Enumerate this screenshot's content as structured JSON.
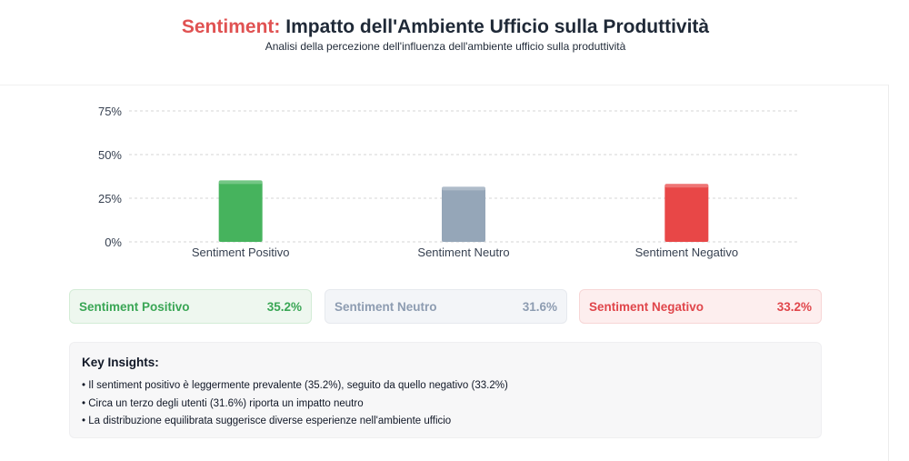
{
  "header": {
    "title_accent": "Sentiment:",
    "title_rest": "Impatto dell'Ambiente Ufficio sulla Produttività",
    "subtitle": "Analisi della percezione dell'influenza dell'ambiente ufficio sulla produttività"
  },
  "chart_data": {
    "type": "bar",
    "categories": [
      "Sentiment Positivo",
      "Sentiment Neutro",
      "Sentiment Negativo"
    ],
    "values": [
      35.2,
      31.6,
      33.2
    ],
    "colors": [
      "#46b35d",
      "#95a6b8",
      "#e84747"
    ],
    "yticks": [
      "0%",
      "25%",
      "50%",
      "75%"
    ],
    "ytick_values": [
      0,
      25,
      50,
      75
    ],
    "ylim": [
      0,
      75
    ],
    "grid": true,
    "title": "",
    "xlabel": "",
    "ylabel": ""
  },
  "cards": [
    {
      "label": "Sentiment Positivo",
      "value": "35.2%"
    },
    {
      "label": "Sentiment Neutro",
      "value": "31.6%"
    },
    {
      "label": "Sentiment Negativo",
      "value": "33.2%"
    }
  ],
  "insights": {
    "title": "Key Insights:",
    "items": [
      "Il sentiment positivo è leggermente prevalente (35.2%), seguito da quello negativo (33.2%)",
      "Circa un terzo degli utenti (31.6%) riporta un impatto neutro",
      "La distribuzione equilibrata suggerisce diverse esperienze nell'ambiente ufficio"
    ]
  }
}
